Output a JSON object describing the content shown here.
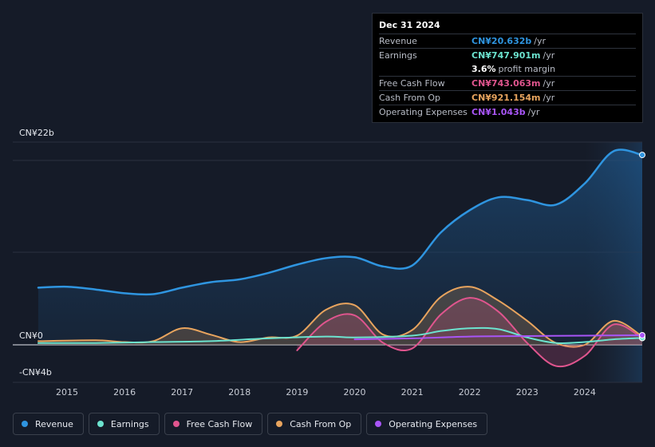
{
  "tooltip": {
    "date": "Dec 31 2024",
    "rows": [
      {
        "label": "Revenue",
        "value": "CN¥20.632b",
        "unit": "/yr",
        "color": "#2f95e0"
      },
      {
        "label": "Earnings",
        "value": "CN¥747.901m",
        "unit": "/yr",
        "color": "#6ce3cf"
      },
      {
        "label": "",
        "value": "3.6%",
        "unit": "profit margin",
        "color": "#ffffff"
      },
      {
        "label": "Free Cash Flow",
        "value": "CN¥743.063m",
        "unit": "/yr",
        "color": "#e0558e"
      },
      {
        "label": "Cash From Op",
        "value": "CN¥921.154m",
        "unit": "/yr",
        "color": "#e8a45e"
      },
      {
        "label": "Operating Expenses",
        "value": "CN¥1.043b",
        "unit": "/yr",
        "color": "#a855f7"
      }
    ]
  },
  "axis": {
    "y_top": "CN¥22b",
    "y_zero": "CN¥0",
    "y_bottom": "-CN¥4b"
  },
  "legend": [
    {
      "label": "Revenue",
      "color": "#2f95e0"
    },
    {
      "label": "Earnings",
      "color": "#6ce3cf"
    },
    {
      "label": "Free Cash Flow",
      "color": "#e0558e"
    },
    {
      "label": "Cash From Op",
      "color": "#e8a45e"
    },
    {
      "label": "Operating Expenses",
      "color": "#a855f7"
    }
  ],
  "chart_data": {
    "type": "line",
    "title": "",
    "xlabel": "",
    "ylabel": "",
    "ylim": [
      -4,
      22
    ],
    "unit": "CN¥ billions",
    "x_ticks": [
      "2015",
      "2016",
      "2017",
      "2018",
      "2019",
      "2020",
      "2021",
      "2022",
      "2023",
      "2024"
    ],
    "forecast_region_start": 2024.0,
    "series": [
      {
        "name": "Revenue",
        "color": "#2f95e0",
        "fill": true,
        "points": [
          [
            2014.5,
            6.2
          ],
          [
            2015.0,
            6.3
          ],
          [
            2015.5,
            6.0
          ],
          [
            2016.0,
            5.6
          ],
          [
            2016.5,
            5.5
          ],
          [
            2017.0,
            6.2
          ],
          [
            2017.5,
            6.8
          ],
          [
            2018.0,
            7.1
          ],
          [
            2018.5,
            7.8
          ],
          [
            2019.0,
            8.7
          ],
          [
            2019.5,
            9.4
          ],
          [
            2020.0,
            9.5
          ],
          [
            2020.5,
            8.5
          ],
          [
            2021.0,
            8.6
          ],
          [
            2021.5,
            12.2
          ],
          [
            2022.0,
            14.6
          ],
          [
            2022.5,
            16.0
          ],
          [
            2023.0,
            15.7
          ],
          [
            2023.5,
            15.2
          ],
          [
            2024.0,
            17.5
          ],
          [
            2024.5,
            21.0
          ],
          [
            2025.0,
            20.6
          ]
        ]
      },
      {
        "name": "Earnings",
        "color": "#6ce3cf",
        "fill": false,
        "points": [
          [
            2014.5,
            0.2
          ],
          [
            2015.5,
            0.2
          ],
          [
            2016.5,
            0.3
          ],
          [
            2017.5,
            0.4
          ],
          [
            2018.5,
            0.7
          ],
          [
            2019.5,
            0.9
          ],
          [
            2020.0,
            0.8
          ],
          [
            2021.0,
            1.0
          ],
          [
            2021.5,
            1.5
          ],
          [
            2022.0,
            1.8
          ],
          [
            2022.5,
            1.7
          ],
          [
            2023.0,
            0.8
          ],
          [
            2023.5,
            0.2
          ],
          [
            2024.0,
            0.3
          ],
          [
            2024.5,
            0.6
          ],
          [
            2025.0,
            0.75
          ]
        ]
      },
      {
        "name": "Free Cash Flow",
        "color": "#e0558e",
        "fill": true,
        "points": [
          [
            2019.0,
            -0.6
          ],
          [
            2019.5,
            2.5
          ],
          [
            2020.0,
            3.2
          ],
          [
            2020.5,
            0.2
          ],
          [
            2021.0,
            -0.4
          ],
          [
            2021.5,
            3.3
          ],
          [
            2022.0,
            5.1
          ],
          [
            2022.5,
            3.6
          ],
          [
            2023.0,
            0.2
          ],
          [
            2023.5,
            -2.3
          ],
          [
            2024.0,
            -1.2
          ],
          [
            2024.5,
            2.2
          ],
          [
            2025.0,
            0.74
          ]
        ]
      },
      {
        "name": "Cash From Op",
        "color": "#e8a45e",
        "fill": true,
        "points": [
          [
            2014.5,
            0.4
          ],
          [
            2015.5,
            0.5
          ],
          [
            2016.0,
            0.3
          ],
          [
            2016.5,
            0.4
          ],
          [
            2017.0,
            1.8
          ],
          [
            2017.5,
            1.1
          ],
          [
            2018.0,
            0.3
          ],
          [
            2018.5,
            0.8
          ],
          [
            2019.0,
            1.0
          ],
          [
            2019.5,
            3.8
          ],
          [
            2020.0,
            4.3
          ],
          [
            2020.5,
            1.1
          ],
          [
            2021.0,
            1.6
          ],
          [
            2021.5,
            5.2
          ],
          [
            2022.0,
            6.3
          ],
          [
            2022.5,
            4.8
          ],
          [
            2023.0,
            2.6
          ],
          [
            2023.5,
            0.2
          ],
          [
            2024.0,
            0.0
          ],
          [
            2024.5,
            2.6
          ],
          [
            2025.0,
            0.92
          ]
        ]
      },
      {
        "name": "Operating Expenses",
        "color": "#a855f7",
        "fill": false,
        "points": [
          [
            2020.0,
            0.6
          ],
          [
            2021.0,
            0.7
          ],
          [
            2022.0,
            0.9
          ],
          [
            2023.0,
            0.95
          ],
          [
            2024.0,
            1.0
          ],
          [
            2025.0,
            1.04
          ]
        ]
      }
    ]
  }
}
